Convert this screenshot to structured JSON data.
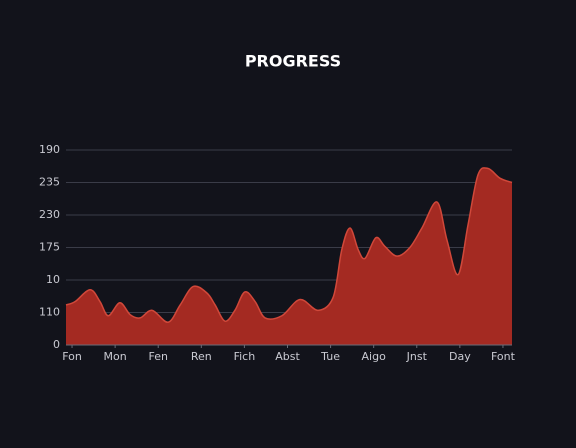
{
  "chart_data": {
    "type": "area",
    "title": "PROGRESS",
    "x": [
      -0.14,
      0.07,
      0.42,
      0.65,
      0.84,
      1.11,
      1.35,
      1.58,
      1.86,
      2.23,
      2.51,
      2.81,
      3.13,
      3.32,
      3.55,
      3.78,
      4.01,
      4.25,
      4.48,
      4.87,
      5.29,
      5.71,
      6.06,
      6.26,
      6.45,
      6.64,
      6.8,
      7.05,
      7.26,
      7.54,
      7.84,
      8.12,
      8.47,
      8.7,
      8.96,
      9.19,
      9.42,
      9.65,
      9.93,
      10.21
    ],
    "values": [
      37,
      40,
      51,
      40,
      27,
      39,
      28,
      25,
      32,
      21,
      37,
      54,
      48,
      37,
      22,
      32,
      49,
      40,
      25,
      27,
      42,
      32,
      44,
      88,
      108,
      88,
      80,
      99,
      91,
      82,
      90,
      108,
      132,
      97,
      65,
      111,
      157,
      163,
      154,
      150
    ],
    "color": "#a42a22",
    "line_color": "#d0483a",
    "xlim": [
      -0.14,
      10.21
    ],
    "xticks": [
      {
        "value": 0,
        "label": "Fon"
      },
      {
        "value": 1,
        "label": "Mon"
      },
      {
        "value": 2,
        "label": "Fen"
      },
      {
        "value": 3,
        "label": "Ren"
      },
      {
        "value": 4,
        "label": "Fich"
      },
      {
        "value": 5,
        "label": "Abst"
      },
      {
        "value": 6,
        "label": "Tue"
      },
      {
        "value": 7,
        "label": "Aigo"
      },
      {
        "value": 8,
        "label": "Jnst"
      },
      {
        "value": 9,
        "label": "Day"
      },
      {
        "value": 10,
        "label": "Font"
      }
    ],
    "ylim": [
      0,
      180
    ],
    "yticks": [
      0,
      {
        "value": 30,
        "label": "110"
      },
      {
        "value": 60,
        "label": "10"
      },
      {
        "value": 90,
        "label": "175"
      },
      {
        "value": 120,
        "label": "230"
      },
      {
        "value": 150,
        "label": "235"
      },
      {
        "value": 180,
        "label": "190"
      }
    ],
    "grid": true
  }
}
